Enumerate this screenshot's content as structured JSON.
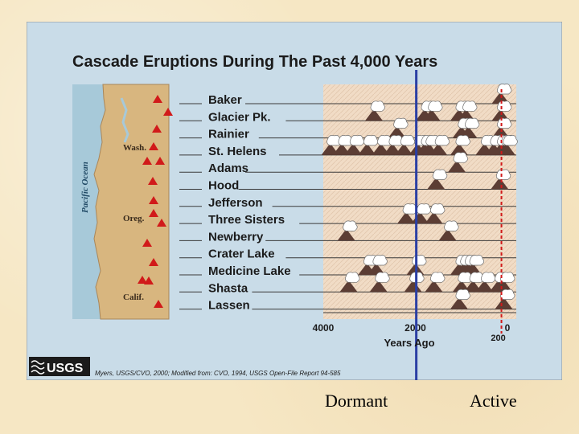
{
  "chart_data": {
    "type": "timeline",
    "title": "Cascade Eruptions During The Past 4,000 Years",
    "xlabel": "Years Ago",
    "x_ticks": [
      {
        "value": 4000,
        "label": "4000"
      },
      {
        "value": 2000,
        "label": "2000"
      },
      {
        "value": 0,
        "label": "0"
      }
    ],
    "x_marker": {
      "value": 200,
      "label": "200"
    },
    "xlim": [
      4000,
      0
    ],
    "divider_year": 0,
    "blue_line_year": 1980,
    "map_labels": {
      "ocean": "Pacific Ocean",
      "wash": "Wash.",
      "oreg": "Oreg.",
      "calif": "Calif."
    },
    "volcanoes": [
      {
        "name": "Baker",
        "eruptions": [
          150
        ]
      },
      {
        "name": "Glacier Pk.",
        "eruptions": [
          2900,
          1800,
          1650,
          1050,
          900,
          150
        ]
      },
      {
        "name": "Rainier",
        "eruptions": [
          2400,
          1000,
          850,
          150
        ]
      },
      {
        "name": "St. Helens",
        "eruptions": [
          3850,
          3600,
          3350,
          3050,
          2750,
          2500,
          2250,
          1950,
          1800,
          1700,
          1500,
          1050,
          500,
          300,
          150,
          60,
          20
        ]
      },
      {
        "name": "Adams",
        "eruptions": [
          1100
        ]
      },
      {
        "name": "Hood",
        "eruptions": [
          1550,
          170
        ]
      },
      {
        "name": "Jefferson",
        "eruptions": []
      },
      {
        "name": "Three Sisters",
        "eruptions": [
          2200,
          1900,
          1600
        ]
      },
      {
        "name": "Newberry",
        "eruptions": [
          3500,
          1300
        ]
      },
      {
        "name": "Crater Lake",
        "eruptions": []
      },
      {
        "name": "Medicine Lake",
        "eruptions": [
          3050,
          2850,
          2000,
          1050,
          950,
          850,
          750
        ]
      },
      {
        "name": "Shasta",
        "eruptions": [
          3450,
          2800,
          2050,
          1600,
          1000,
          750,
          500,
          200,
          80
        ]
      },
      {
        "name": "Lassen",
        "eruptions": [
          1050,
          80
        ]
      }
    ]
  },
  "figure": {
    "source": "Myers, USGS/CVO, 2000; Modified from: CVO, 1994, USGS Open-File Report 94-585",
    "logo": "USGS"
  },
  "captions": {
    "dormant": "Dormant",
    "active": "Active"
  },
  "colors": {
    "panel": "#c9dce8",
    "chart_area": "#f1dcc6",
    "land": "#d8b67f",
    "ocean": "#a7c9d9",
    "volcano": "#5c3d34",
    "triangle": "#d11a1a",
    "blue_line": "#2b3fa4",
    "red_line": "#d11a1a"
  }
}
